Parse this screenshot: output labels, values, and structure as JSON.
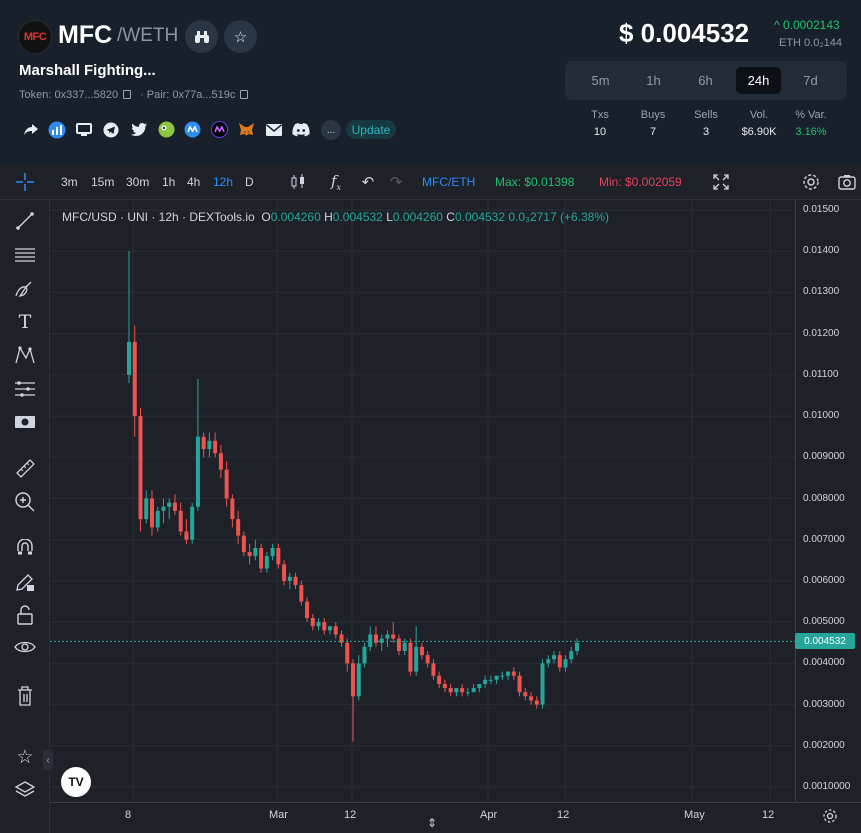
{
  "header": {
    "logo_text": "MFC",
    "symbol": "MFC",
    "quote_separator": "/",
    "quote": "WETH",
    "name": "Marshall Fighting...",
    "token_label": "Token: 0x337...5820",
    "pair_label": "Pair: 0x77a...519c",
    "update_label": "Update",
    "more_label": "..."
  },
  "price": {
    "usd": "$ 0.004532",
    "change": "0.0002143",
    "eth": "ETH 0.0₂144"
  },
  "timeframes": [
    {
      "label": "5m",
      "active": false
    },
    {
      "label": "1h",
      "active": false
    },
    {
      "label": "6h",
      "active": false
    },
    {
      "label": "24h",
      "active": true
    },
    {
      "label": "7d",
      "active": false
    }
  ],
  "stats": [
    {
      "label": "Txs",
      "value": "10",
      "color": "#e6ebf2"
    },
    {
      "label": "Buys",
      "value": "7",
      "color": "#e6ebf2"
    },
    {
      "label": "Sells",
      "value": "3",
      "color": "#e6ebf2"
    },
    {
      "label": "Vol.",
      "value": "$6.90K",
      "color": "#e6ebf2"
    },
    {
      "label": "% Var.",
      "value": "3.16%",
      "color": "#21c16b"
    }
  ],
  "toolbar": {
    "intervals": [
      "3m",
      "15m",
      "30m",
      "1h",
      "4h",
      "12h",
      "D"
    ],
    "active_interval": "12h",
    "pair": "MFC/ETH",
    "max_label": "Max: $0.01398",
    "min_label": "Min: $0.002059"
  },
  "legend": {
    "title": "MFC/USD · UNI · 12h · DEXTools.io",
    "o_key": "O",
    "o": "0.004260",
    "h_key": "H",
    "h": "0.004532",
    "l_key": "L",
    "l": "0.004260",
    "c_key": "C",
    "c": "0.004532",
    "delta": "0.0₃2717 (+6.38%)"
  },
  "colors": {
    "up": "#26a69a",
    "down": "#ef5350",
    "accent": "#2f8cf5",
    "positive": "#21c16b"
  },
  "chart_data": {
    "type": "candlestick",
    "ylim": [
      0.001,
      0.0153
    ],
    "y_ticks": [
      "0.01500",
      "0.01400",
      "0.01300",
      "0.01200",
      "0.01100",
      "0.01000",
      "0.009000",
      "0.008000",
      "0.007000",
      "0.006000",
      "0.005000",
      "0.004000",
      "0.003000",
      "0.002000",
      "0.0010000"
    ],
    "x_ticks": [
      "8",
      "Mar",
      "12",
      "Apr",
      "12",
      "May",
      "12"
    ],
    "last_price_label": "0.004532",
    "last_price": 0.004532,
    "candles": [
      [
        0.011,
        0.014,
        0.0108,
        0.0118
      ],
      [
        0.0118,
        0.0122,
        0.0095,
        0.01
      ],
      [
        0.01,
        0.0102,
        0.0072,
        0.0075
      ],
      [
        0.0075,
        0.0082,
        0.0074,
        0.008
      ],
      [
        0.008,
        0.0082,
        0.0071,
        0.0073
      ],
      [
        0.0073,
        0.0078,
        0.0072,
        0.0077
      ],
      [
        0.0077,
        0.008,
        0.0074,
        0.0078
      ],
      [
        0.0078,
        0.008,
        0.0075,
        0.0079
      ],
      [
        0.0079,
        0.0081,
        0.0076,
        0.0077
      ],
      [
        0.0077,
        0.0079,
        0.0071,
        0.0072
      ],
      [
        0.0072,
        0.0075,
        0.0069,
        0.007
      ],
      [
        0.007,
        0.0079,
        0.0069,
        0.0078
      ],
      [
        0.0078,
        0.0109,
        0.0077,
        0.0095
      ],
      [
        0.0095,
        0.0096,
        0.009,
        0.0092
      ],
      [
        0.0092,
        0.0096,
        0.009,
        0.0094
      ],
      [
        0.0094,
        0.0096,
        0.009,
        0.0091
      ],
      [
        0.0091,
        0.0093,
        0.0085,
        0.0087
      ],
      [
        0.0087,
        0.0089,
        0.0078,
        0.008
      ],
      [
        0.008,
        0.0081,
        0.0073,
        0.0075
      ],
      [
        0.0075,
        0.0077,
        0.0069,
        0.0071
      ],
      [
        0.0071,
        0.0072,
        0.0066,
        0.0067
      ],
      [
        0.0067,
        0.0069,
        0.0064,
        0.0066
      ],
      [
        0.0066,
        0.007,
        0.0065,
        0.0068
      ],
      [
        0.0068,
        0.0069,
        0.0062,
        0.0063
      ],
      [
        0.0063,
        0.0067,
        0.0062,
        0.0066
      ],
      [
        0.0066,
        0.0069,
        0.0065,
        0.0068
      ],
      [
        0.0068,
        0.0069,
        0.0063,
        0.0064
      ],
      [
        0.0064,
        0.0065,
        0.0059,
        0.006
      ],
      [
        0.006,
        0.0062,
        0.0058,
        0.0061
      ],
      [
        0.0061,
        0.0062,
        0.0058,
        0.0059
      ],
      [
        0.0059,
        0.006,
        0.0054,
        0.0055
      ],
      [
        0.0055,
        0.0056,
        0.005,
        0.0051
      ],
      [
        0.0051,
        0.0052,
        0.0048,
        0.0049
      ],
      [
        0.0049,
        0.0051,
        0.0048,
        0.005
      ],
      [
        0.005,
        0.0051,
        0.0047,
        0.0048
      ],
      [
        0.0048,
        0.0049,
        0.0047,
        0.0049
      ],
      [
        0.0049,
        0.005,
        0.0046,
        0.0047
      ],
      [
        0.0047,
        0.0048,
        0.0044,
        0.0045
      ],
      [
        0.0045,
        0.0046,
        0.0038,
        0.004
      ],
      [
        0.004,
        0.0041,
        0.0021,
        0.0032
      ],
      [
        0.0032,
        0.0042,
        0.0031,
        0.004
      ],
      [
        0.004,
        0.0045,
        0.0039,
        0.0044
      ],
      [
        0.0044,
        0.0049,
        0.0043,
        0.0047
      ],
      [
        0.0047,
        0.0049,
        0.0044,
        0.0045
      ],
      [
        0.0045,
        0.0047,
        0.0043,
        0.0046
      ],
      [
        0.0046,
        0.0048,
        0.0044,
        0.0047
      ],
      [
        0.0047,
        0.005,
        0.0045,
        0.0046
      ],
      [
        0.0046,
        0.0047,
        0.0042,
        0.0043
      ],
      [
        0.0043,
        0.0046,
        0.0042,
        0.0045
      ],
      [
        0.0045,
        0.0046,
        0.0037,
        0.0038
      ],
      [
        0.0038,
        0.0049,
        0.0037,
        0.0044
      ],
      [
        0.0044,
        0.0045,
        0.0041,
        0.0042
      ],
      [
        0.0042,
        0.0043,
        0.0039,
        0.004
      ],
      [
        0.004,
        0.0041,
        0.0036,
        0.0037
      ],
      [
        0.0037,
        0.0038,
        0.0034,
        0.0035
      ],
      [
        0.0035,
        0.0036,
        0.0033,
        0.0034
      ],
      [
        0.0034,
        0.0035,
        0.0032,
        0.0033
      ],
      [
        0.0033,
        0.0034,
        0.0032,
        0.0034
      ],
      [
        0.0034,
        0.0035,
        0.0032,
        0.0033
      ],
      [
        0.0033,
        0.0034,
        0.0032,
        0.0033
      ],
      [
        0.0033,
        0.0035,
        0.0033,
        0.0034
      ],
      [
        0.0034,
        0.0035,
        0.0033,
        0.0035
      ],
      [
        0.0035,
        0.0037,
        0.0034,
        0.0036
      ],
      [
        0.0036,
        0.0037,
        0.0035,
        0.0036
      ],
      [
        0.0036,
        0.0037,
        0.0035,
        0.0037
      ],
      [
        0.0037,
        0.0038,
        0.0036,
        0.0037
      ],
      [
        0.0037,
        0.0038,
        0.0036,
        0.0038
      ],
      [
        0.0038,
        0.0039,
        0.0036,
        0.0037
      ],
      [
        0.0037,
        0.0038,
        0.0032,
        0.0033
      ],
      [
        0.0033,
        0.0034,
        0.0031,
        0.0032
      ],
      [
        0.0032,
        0.0033,
        0.003,
        0.0031
      ],
      [
        0.0031,
        0.0032,
        0.0029,
        0.003
      ],
      [
        0.003,
        0.0041,
        0.0029,
        0.004
      ],
      [
        0.004,
        0.0042,
        0.0039,
        0.0041
      ],
      [
        0.0041,
        0.0043,
        0.004,
        0.0042
      ],
      [
        0.0042,
        0.0043,
        0.0038,
        0.0039
      ],
      [
        0.0039,
        0.0042,
        0.0038,
        0.0041
      ],
      [
        0.0041,
        0.0044,
        0.004,
        0.0043
      ],
      [
        0.0043,
        0.0046,
        0.0042,
        0.0045
      ]
    ]
  }
}
